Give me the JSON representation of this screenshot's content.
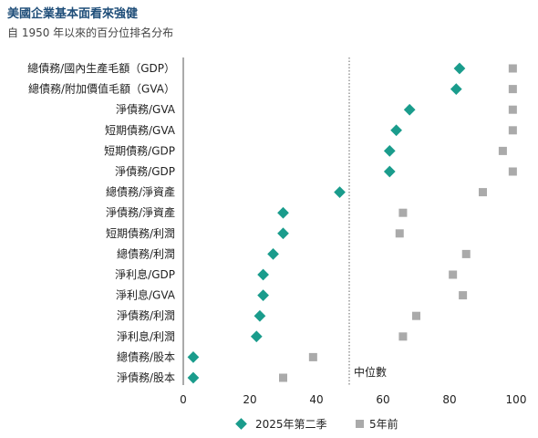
{
  "title": "美國企業基本面看來強健",
  "subtitle": "自 1950 年以來的百分位排名分布",
  "chart_data": {
    "type": "scatter",
    "categories": [
      "總債務/國內生產毛額（GDP）",
      "總債務/附加價值毛額（GVA）",
      "淨債務/GVA",
      "短期債務/GVA",
      "短期債務/GDP",
      "淨債務/GDP",
      "總債務/淨資產",
      "淨債務/淨資產",
      "短期債務/利潤",
      "總債務/利潤",
      "淨利息/GDP",
      "淨利息/GVA",
      "淨債務/利潤",
      "淨利息/利潤",
      "總債務/股本",
      "淨債務/股本"
    ],
    "series": [
      {
        "name": "2025年第二季",
        "color": "#1a9c8c",
        "marker": "diamond",
        "values": [
          83,
          82,
          68,
          64,
          62,
          62,
          47,
          30,
          30,
          27,
          24,
          24,
          23,
          22,
          3,
          3
        ]
      },
      {
        "name": "5年前",
        "color": "#aaaaaa",
        "marker": "square",
        "values": [
          99,
          99,
          99,
          99,
          96,
          99,
          90,
          66,
          65,
          85,
          81,
          84,
          70,
          66,
          39,
          30
        ]
      }
    ],
    "xlim": [
      0,
      100
    ],
    "xticks": [
      "0",
      "20",
      "40",
      "60",
      "80",
      "100"
    ],
    "median_line": 50,
    "median_label": "中位數",
    "grid": false,
    "legend": "bottom"
  }
}
